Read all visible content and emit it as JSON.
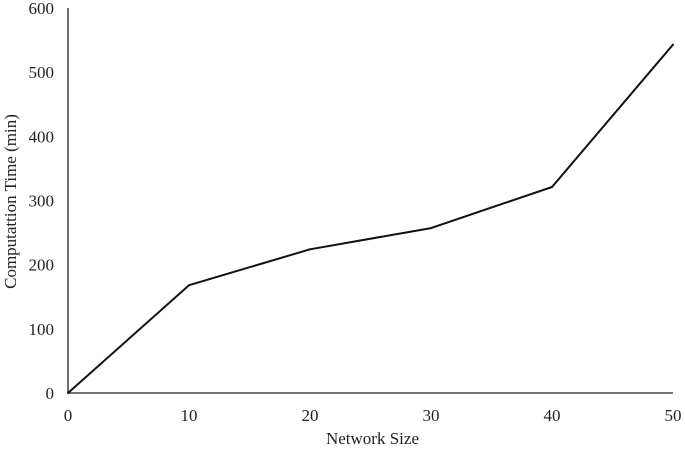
{
  "chart_data": {
    "type": "line",
    "title": "",
    "xlabel": "Network Size",
    "ylabel": "Computattion Time (min)",
    "xlim": [
      0,
      50
    ],
    "ylim": [
      0,
      600
    ],
    "xticks": [
      "0",
      "10",
      "20",
      "30",
      "40",
      "50"
    ],
    "yticks": [
      "0",
      "100",
      "200",
      "300",
      "400",
      "500",
      "600"
    ],
    "grid": false,
    "legend": "none",
    "series": [
      {
        "color": "#111111",
        "x": [
          0,
          10,
          20,
          30,
          40,
          50
        ],
        "y": [
          0,
          168,
          224,
          257,
          321,
          543
        ]
      }
    ]
  }
}
